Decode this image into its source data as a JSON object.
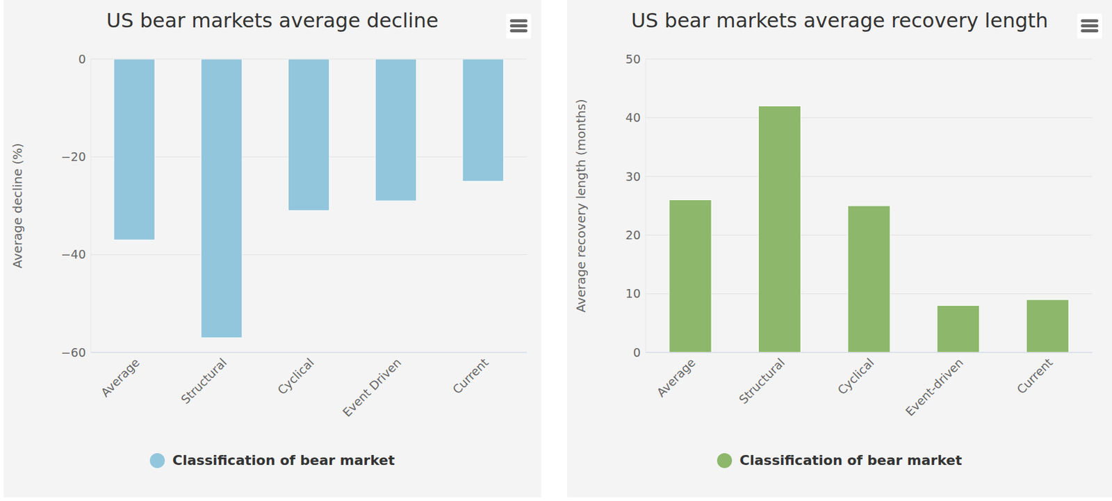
{
  "chart_data": [
    {
      "type": "bar",
      "title": "US bear markets average decline",
      "y_label": "Average decline (%)",
      "categories": [
        "Average",
        "Structural",
        "Cyclical",
        "Event Driven",
        "Current"
      ],
      "series": [
        {
          "name": "Classification of bear market",
          "color": "#92c6dc",
          "values": [
            -37,
            -57,
            -31,
            -29,
            -25
          ]
        }
      ],
      "ylim": [
        -60,
        0
      ],
      "yticks": [
        -60,
        -40,
        -20,
        0
      ],
      "grid": true,
      "legend": "bottom"
    },
    {
      "type": "bar",
      "title": "US bear markets average recovery length",
      "y_label": "Average recovery length (months)",
      "categories": [
        "Average",
        "Structural",
        "Cyclical",
        "Event-driven",
        "Current"
      ],
      "series": [
        {
          "name": "Classification of bear market",
          "color": "#8db76a",
          "values": [
            26,
            42,
            25,
            8,
            9
          ]
        }
      ],
      "ylim": [
        0,
        50
      ],
      "yticks": [
        0,
        10,
        20,
        30,
        40,
        50
      ],
      "grid": true,
      "legend": "bottom"
    }
  ]
}
